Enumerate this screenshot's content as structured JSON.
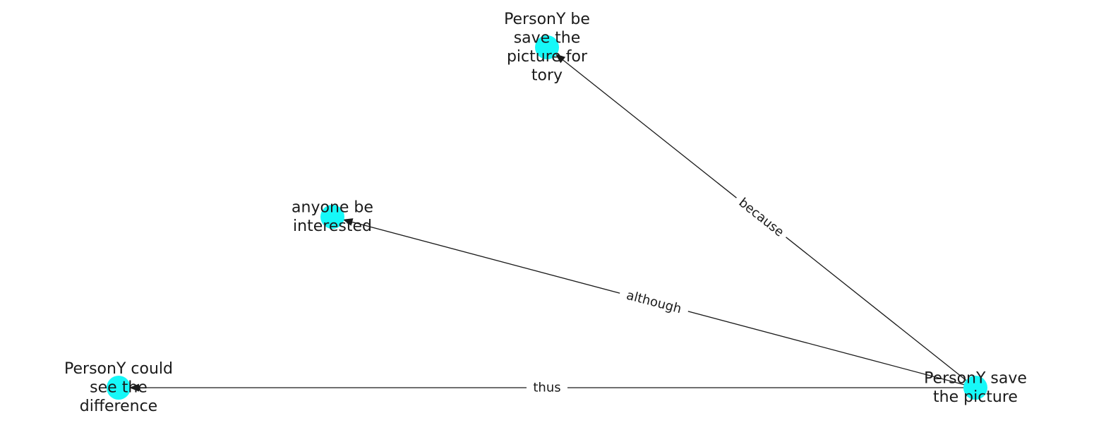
{
  "diagram": {
    "nodes": [
      {
        "id": "save",
        "lines": [
          "PersonY save",
          "the picture"
        ],
        "color": "#16f8f8"
      },
      {
        "id": "story",
        "lines": [
          "PersonY be",
          "save the",
          "picture for",
          "tory"
        ],
        "color": "#16f8f8"
      },
      {
        "id": "interested",
        "lines": [
          "anyone be",
          "interested"
        ],
        "color": "#16f8f8"
      },
      {
        "id": "difference",
        "lines": [
          "PersonY could",
          "see the",
          "difference"
        ],
        "color": "#16f8f8"
      }
    ],
    "edges": [
      {
        "from": "save",
        "to": "story",
        "label": "because"
      },
      {
        "from": "save",
        "to": "interested",
        "label": "although"
      },
      {
        "from": "save",
        "to": "difference",
        "label": "thus"
      }
    ]
  }
}
